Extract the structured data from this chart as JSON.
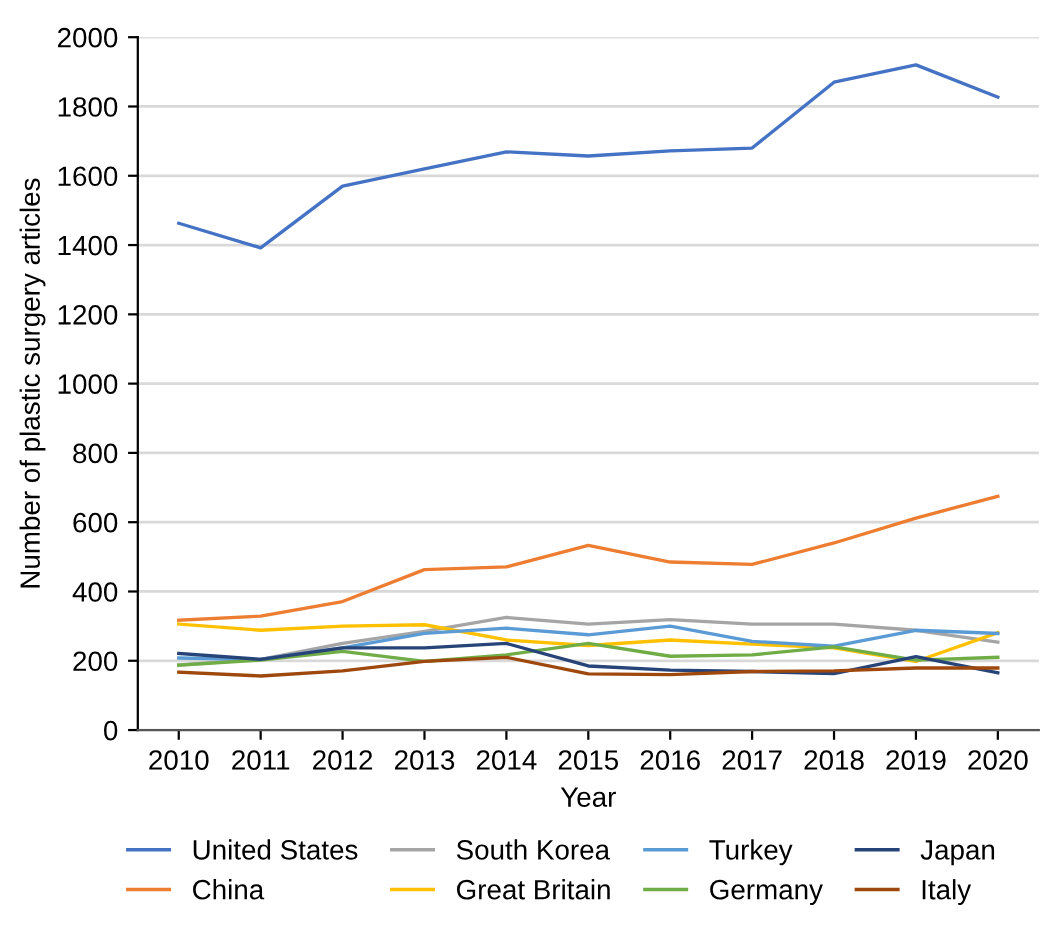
{
  "chart_data": {
    "type": "line",
    "xlabel": "Year",
    "ylabel": "Number of plastic surgery articles",
    "categories": [
      "2010",
      "2011",
      "2012",
      "2013",
      "2014",
      "2015",
      "2016",
      "2017",
      "2018",
      "2019",
      "2020"
    ],
    "series": [
      {
        "name": "United States",
        "color": "#4472c4",
        "values": [
          1463,
          1392,
          1570,
          1620,
          1669,
          1657,
          1672,
          1680,
          1870,
          1920,
          1827
        ]
      },
      {
        "name": "China",
        "color": "#ed7d31",
        "values": [
          317,
          329,
          371,
          463,
          471,
          533,
          485,
          478,
          540,
          612,
          675
        ]
      },
      {
        "name": "South Korea",
        "color": "#a5a5a5",
        "values": [
          188,
          204,
          250,
          285,
          325,
          306,
          319,
          306,
          306,
          288,
          254
        ]
      },
      {
        "name": "Great Britain",
        "color": "#ffc000",
        "values": [
          306,
          288,
          300,
          304,
          260,
          244,
          260,
          248,
          237,
          198,
          281
        ]
      },
      {
        "name": "Turkey",
        "color": "#5b9bd5",
        "values": [
          208,
          204,
          237,
          279,
          294,
          275,
          300,
          256,
          242,
          288,
          279
        ]
      },
      {
        "name": "Germany",
        "color": "#70ad47",
        "values": [
          187,
          202,
          227,
          198,
          217,
          250,
          213,
          217,
          240,
          202,
          210
        ]
      },
      {
        "name": "Japan",
        "color": "#264478",
        "values": [
          221,
          204,
          237,
          237,
          250,
          185,
          173,
          169,
          163,
          212,
          165
        ]
      },
      {
        "name": "Italy",
        "color": "#9e480e",
        "values": [
          167,
          156,
          171,
          198,
          210,
          162,
          160,
          169,
          171,
          179,
          179
        ]
      }
    ],
    "ylim": [
      0,
      2000
    ],
    "yticks": [
      0,
      200,
      400,
      600,
      800,
      1000,
      1200,
      1400,
      1600,
      1800,
      2000
    ],
    "grid": "y",
    "legend": "bottom",
    "marker": "none",
    "line_style": "solid"
  }
}
